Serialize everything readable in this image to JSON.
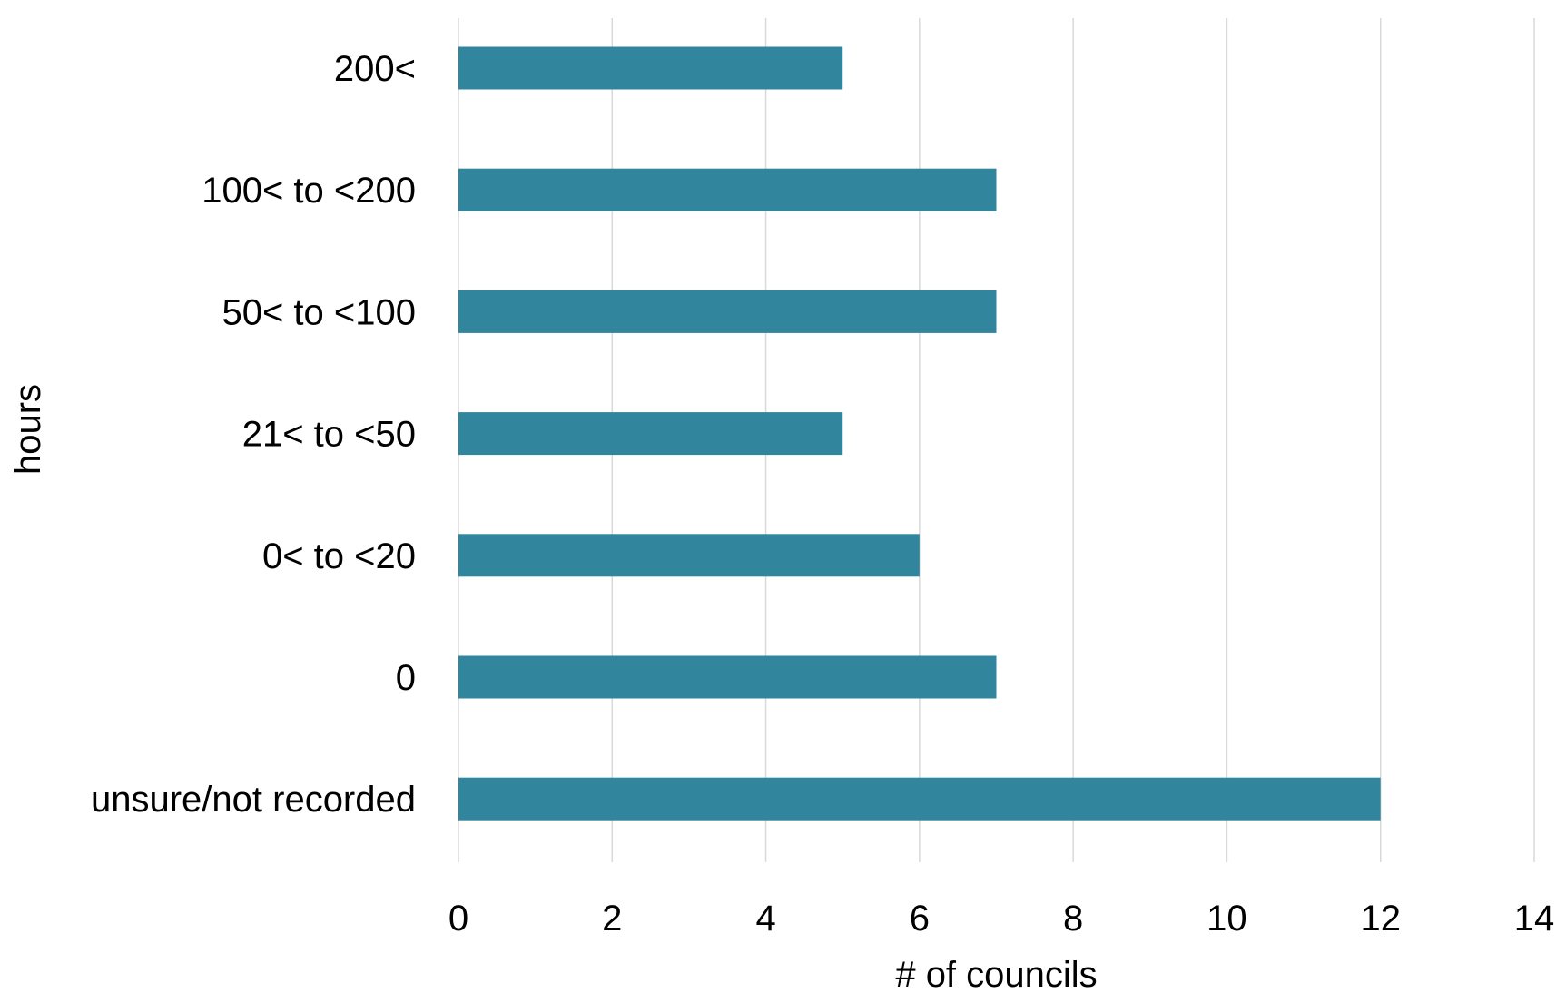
{
  "chart_data": {
    "type": "bar",
    "orientation": "horizontal",
    "categories": [
      "200<",
      "100< to <200",
      "50< to <100",
      "21< to <50",
      "0< to <20",
      "0",
      "unsure/not recorded"
    ],
    "values": [
      5,
      7,
      7,
      5,
      6,
      7,
      12
    ],
    "xlabel": "# of councils",
    "ylabel": "hours",
    "xlim": [
      0,
      14
    ],
    "xticks": [
      "0",
      "2",
      "4",
      "6",
      "8",
      "10",
      "12",
      "14"
    ],
    "grid": "vertical",
    "legend": "none",
    "bar_color": "#31859c"
  }
}
